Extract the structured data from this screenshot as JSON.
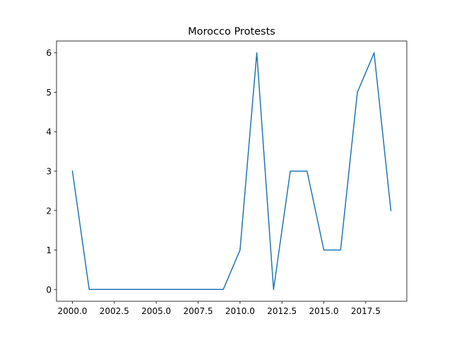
{
  "chart_data": {
    "type": "line",
    "title": "Morocco Protests",
    "xlabel": "",
    "ylabel": "",
    "xlim": [
      1999.05,
      2019.95
    ],
    "ylim": [
      -0.3,
      6.3
    ],
    "xticks": [
      2000,
      2002.5,
      2005,
      2007.5,
      2010,
      2012.5,
      2015,
      2017.5
    ],
    "xtick_labels": [
      "2000.0",
      "2002.5",
      "2005.0",
      "2007.5",
      "2010.0",
      "2012.5",
      "2015.0",
      "2017.5"
    ],
    "yticks": [
      0,
      1,
      2,
      3,
      4,
      5,
      6
    ],
    "ytick_labels": [
      "0",
      "1",
      "2",
      "3",
      "4",
      "5",
      "6"
    ],
    "grid": false,
    "series": [
      {
        "color": "#1f77b4",
        "x": [
          2000,
          2001,
          2002,
          2003,
          2004,
          2005,
          2006,
          2007,
          2008,
          2009,
          2010,
          2011,
          2012,
          2013,
          2014,
          2015,
          2016,
          2017,
          2018,
          2019
        ],
        "y": [
          3,
          0,
          0,
          0,
          0,
          0,
          0,
          0,
          0,
          0,
          1,
          6,
          0,
          3,
          3,
          1,
          1,
          5,
          6,
          2
        ]
      }
    ]
  }
}
